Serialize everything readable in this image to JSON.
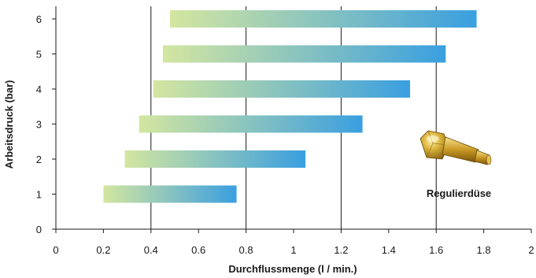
{
  "chart_data": {
    "type": "bar",
    "orientation": "horizontal",
    "categories": [
      "1",
      "2",
      "3",
      "4",
      "5",
      "6"
    ],
    "series": [
      {
        "ranges": [
          [
            0.2,
            0.76
          ],
          [
            0.29,
            1.05
          ],
          [
            0.35,
            1.29
          ],
          [
            0.41,
            1.49
          ],
          [
            0.45,
            1.64
          ],
          [
            0.48,
            1.77
          ]
        ]
      }
    ],
    "xlabel": "Durchflussmenge (l / min.)",
    "ylabel": "Arbeitsdruck (bar)",
    "xlim": [
      0,
      2
    ],
    "ylim": [
      0,
      6
    ],
    "xticks": [
      "0",
      "0.2",
      "0.4",
      "0.6",
      "0.8",
      "1",
      "1.2",
      "1.4",
      "1.6",
      "1.8",
      "2"
    ],
    "yticks": [
      "0",
      "1",
      "2",
      "3",
      "4",
      "5",
      "6"
    ],
    "grid": "vertical lines at 0.4, 0.8, 1.2, 1.6",
    "gradient_colors": [
      "#d4e6a0",
      "#3a9fe0"
    ],
    "annotation": "Regulierdüse",
    "annotation_icon": "nozzle-icon"
  }
}
